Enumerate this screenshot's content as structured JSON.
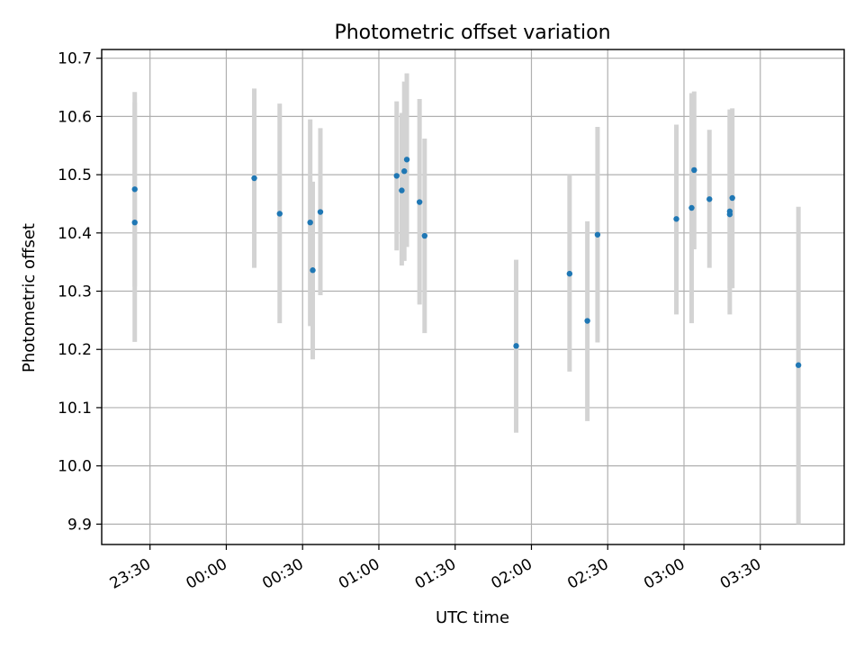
{
  "chart_data": {
    "type": "scatter",
    "title": "Photometric offset variation",
    "xlabel": "UTC time",
    "ylabel": "Photometric offset",
    "x_axis": {
      "type": "time",
      "tick_labels": [
        "23:30",
        "00:00",
        "00:30",
        "01:00",
        "01:30",
        "02:00",
        "02:30",
        "03:00",
        "03:30"
      ],
      "tick_times": [
        "23:30",
        "00:00",
        "00:30",
        "01:00",
        "01:30",
        "02:00",
        "02:30",
        "03:00",
        "03:30"
      ],
      "range": [
        "23:11",
        "04:03"
      ]
    },
    "y_axis": {
      "ticks": [
        9.9,
        10.0,
        10.1,
        10.2,
        10.3,
        10.4,
        10.5,
        10.6,
        10.7
      ],
      "tick_labels": [
        "9.9",
        "10.0",
        "10.1",
        "10.2",
        "10.3",
        "10.4",
        "10.5",
        "10.6",
        "10.7"
      ],
      "range": [
        9.865,
        10.715
      ]
    },
    "grid": true,
    "colors": {
      "point": "#1f77b4",
      "errorbar": "#d3d3d3",
      "grid": "#b0b0b0",
      "axes": "#000000"
    },
    "points": [
      {
        "x": "23:24",
        "y": 10.475,
        "y_low": 10.308,
        "y_high": 10.642
      },
      {
        "x": "23:24",
        "y": 10.418,
        "y_low": 10.213,
        "y_high": 10.624
      },
      {
        "x": "00:11",
        "y": 10.494,
        "y_low": 10.34,
        "y_high": 10.648
      },
      {
        "x": "00:21",
        "y": 10.433,
        "y_low": 10.245,
        "y_high": 10.622
      },
      {
        "x": "00:33",
        "y": 10.418,
        "y_low": 10.24,
        "y_high": 10.595
      },
      {
        "x": "00:34",
        "y": 10.336,
        "y_low": 10.183,
        "y_high": 10.488
      },
      {
        "x": "00:37",
        "y": 10.436,
        "y_low": 10.293,
        "y_high": 10.58
      },
      {
        "x": "01:07",
        "y": 10.498,
        "y_low": 10.37,
        "y_high": 10.626
      },
      {
        "x": "01:09",
        "y": 10.473,
        "y_low": 10.344,
        "y_high": 10.606
      },
      {
        "x": "01:10",
        "y": 10.506,
        "y_low": 10.352,
        "y_high": 10.66
      },
      {
        "x": "01:11",
        "y": 10.526,
        "y_low": 10.376,
        "y_high": 10.674
      },
      {
        "x": "01:16",
        "y": 10.453,
        "y_low": 10.277,
        "y_high": 10.63
      },
      {
        "x": "01:18",
        "y": 10.395,
        "y_low": 10.228,
        "y_high": 10.562
      },
      {
        "x": "01:54",
        "y": 10.206,
        "y_low": 10.057,
        "y_high": 10.354
      },
      {
        "x": "02:15",
        "y": 10.33,
        "y_low": 10.162,
        "y_high": 10.5
      },
      {
        "x": "02:22",
        "y": 10.249,
        "y_low": 10.077,
        "y_high": 10.42
      },
      {
        "x": "02:26",
        "y": 10.397,
        "y_low": 10.212,
        "y_high": 10.582
      },
      {
        "x": "02:57",
        "y": 10.424,
        "y_low": 10.26,
        "y_high": 10.586
      },
      {
        "x": "03:03",
        "y": 10.443,
        "y_low": 10.245,
        "y_high": 10.64
      },
      {
        "x": "03:04",
        "y": 10.508,
        "y_low": 10.372,
        "y_high": 10.643
      },
      {
        "x": "03:10",
        "y": 10.458,
        "y_low": 10.34,
        "y_high": 10.577
      },
      {
        "x": "03:18",
        "y": 10.437,
        "y_low": 10.26,
        "y_high": 10.612
      },
      {
        "x": "03:18",
        "y": 10.432,
        "y_low": 10.305,
        "y_high": 10.6
      },
      {
        "x": "03:19",
        "y": 10.46,
        "y_low": 10.305,
        "y_high": 10.614
      },
      {
        "x": "03:45",
        "y": 10.173,
        "y_low": 9.9,
        "y_high": 10.445
      }
    ]
  }
}
